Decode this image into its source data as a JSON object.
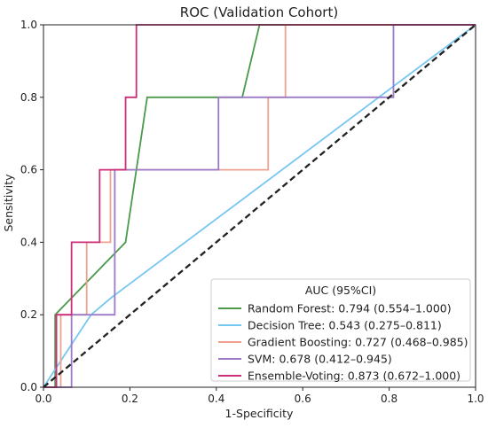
{
  "chart_data": {
    "type": "line",
    "title": "ROC (Validation Cohort)",
    "xlabel": "1-Specificity",
    "ylabel": "Sensitivity",
    "xlim": [
      0.0,
      1.0
    ],
    "ylim": [
      0.0,
      1.0
    ],
    "x_ticks": [
      "0.0",
      "0.2",
      "0.4",
      "0.6",
      "0.8",
      "1.0"
    ],
    "y_ticks": [
      "0.0",
      "0.2",
      "0.4",
      "0.6",
      "0.8",
      "1.0"
    ],
    "grid": false,
    "legend": {
      "title": "AUC (95%CI)",
      "placement": "lower-right"
    },
    "reference_line": {
      "x": [
        0,
        1
      ],
      "y": [
        0,
        1
      ],
      "style": "dashed",
      "color": "#222222"
    },
    "series": [
      {
        "name": "Random Forest: 0.794 (0.554–1.000)",
        "color": "#4a9a4a",
        "x": [
          0.0,
          0.027,
          0.027,
          0.19,
          0.24,
          0.46,
          0.5,
          1.0
        ],
        "y": [
          0.0,
          0.0,
          0.2,
          0.4,
          0.8,
          0.8,
          1.0,
          1.0
        ]
      },
      {
        "name": "Decision Tree: 0.543 (0.275–0.811)",
        "color": "#76c7ef",
        "x": [
          0.0,
          0.11,
          0.16,
          1.0
        ],
        "y": [
          0.0,
          0.2,
          0.25,
          1.0
        ]
      },
      {
        "name": "Gradient Boosting: 0.727 (0.468–0.985)",
        "color": "#f0a090",
        "x": [
          0.0,
          0.04,
          0.04,
          0.1,
          0.1,
          0.155,
          0.155,
          0.52,
          0.52,
          0.56,
          0.56,
          1.0
        ],
        "y": [
          0.0,
          0.0,
          0.2,
          0.2,
          0.4,
          0.4,
          0.6,
          0.6,
          0.8,
          0.8,
          1.0,
          1.0
        ]
      },
      {
        "name": "SVM: 0.678 (0.412–0.945)",
        "color": "#9b7bc8",
        "x": [
          0.0,
          0.065,
          0.065,
          0.165,
          0.165,
          0.405,
          0.405,
          0.81,
          0.81,
          1.0
        ],
        "y": [
          0.0,
          0.0,
          0.2,
          0.2,
          0.6,
          0.6,
          0.8,
          0.8,
          1.0,
          1.0
        ]
      },
      {
        "name": "Ensemble-Voting: 0.873 (0.672–1.000)",
        "color": "#cc2e78",
        "x": [
          0.0,
          0.03,
          0.03,
          0.065,
          0.065,
          0.13,
          0.13,
          0.19,
          0.19,
          0.215,
          0.215,
          1.0
        ],
        "y": [
          0.0,
          0.0,
          0.2,
          0.2,
          0.4,
          0.4,
          0.6,
          0.6,
          0.8,
          0.8,
          1.0,
          1.0
        ]
      }
    ]
  }
}
